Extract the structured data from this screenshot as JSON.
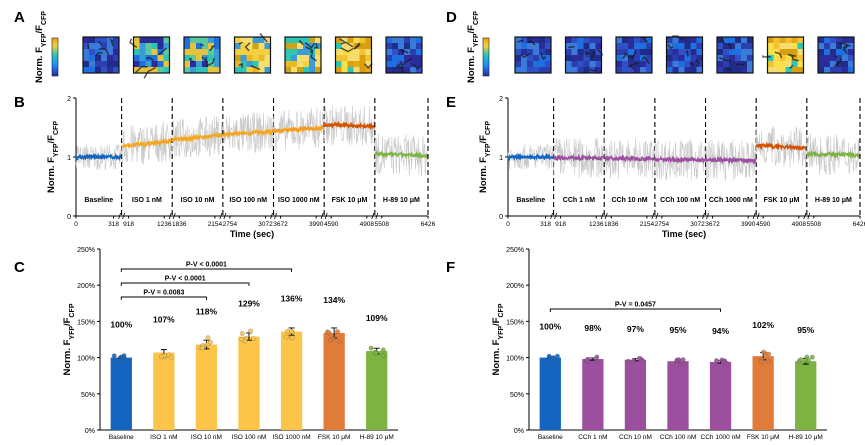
{
  "colors": {
    "baseline": "#1565c0",
    "iso": "#f5a623",
    "iso_bar": "#fcc54a",
    "iso_trace_late": "#f59a1d",
    "fsk": "#e07b39",
    "fsk_trace": "#d35400",
    "h89": "#7cb342",
    "cch": "#9b4f9e",
    "raw": "#c8c8c8"
  },
  "panels": {
    "A": "A",
    "B": "B",
    "C": "C",
    "D": "D",
    "E": "E",
    "F": "F"
  },
  "image_row_label": "Norm. F",
  "time_axis_label": "Time (sec)",
  "y_axis_trace": "Norm. F",
  "y_axis_bar": "Norm. F",
  "ratio_sub_yfp": "YFP",
  "ratio_sub_cfp": "CFP",
  "ratio_slash": "/F",
  "chart_data": [
    {
      "id": "B",
      "type": "line",
      "title": "",
      "xlabel": "Time (sec)",
      "ylabel": "Norm. F_YFP/F_CFP",
      "ylim": [
        0,
        2
      ],
      "yticks": [
        "0",
        "1",
        "2"
      ],
      "xticks": [
        "0",
        "318",
        "918",
        "1236",
        "1836",
        "2154",
        "2754",
        "3072",
        "3672",
        "3990",
        "4590",
        "4908",
        "5508",
        "6426"
      ],
      "segments": [
        {
          "label": "Baseline",
          "t_start": 0,
          "t_end": 318,
          "mean_start": 1.0,
          "mean_end": 1.0
        },
        {
          "label": "ISO 1 nM",
          "t_start": 918,
          "t_end": 1236,
          "mean_start": 1.18,
          "mean_end": 1.27
        },
        {
          "label": "ISO 10 nM",
          "t_start": 1836,
          "t_end": 2154,
          "mean_start": 1.29,
          "mean_end": 1.37
        },
        {
          "label": "ISO 100 nM",
          "t_start": 2754,
          "t_end": 3072,
          "mean_start": 1.38,
          "mean_end": 1.43
        },
        {
          "label": "ISO 1000 nM",
          "t_start": 3672,
          "t_end": 3990,
          "mean_start": 1.44,
          "mean_end": 1.5
        },
        {
          "label": "FSK 10 μM",
          "t_start": 4590,
          "t_end": 4908,
          "mean_start": 1.55,
          "mean_end": 1.52
        },
        {
          "label": "H-89 10 μM",
          "t_start": 5508,
          "t_end": 6426,
          "mean_start": 1.05,
          "mean_end": 1.02
        }
      ]
    },
    {
      "id": "C",
      "type": "bar",
      "ylabel": "Norm. F_YFP/F_CFP",
      "ylim": [
        0,
        250
      ],
      "yticks": [
        "0%",
        "50%",
        "100%",
        "150%",
        "200%",
        "250%"
      ],
      "categories": [
        "Baseline",
        "ISO 1 nM",
        "ISO 10 nM",
        "ISO 100 nM",
        "ISO 1000 nM",
        "FSK 10 μM",
        "H-89 10 μM"
      ],
      "values": [
        100,
        107,
        118,
        129,
        136,
        134,
        109
      ],
      "errors": [
        1,
        4,
        6,
        5,
        5,
        7,
        4
      ],
      "data_labels": [
        "100%",
        "107%",
        "118%",
        "129%",
        "136%",
        "134%",
        "109%"
      ],
      "significance": [
        {
          "label": "P-V < 0.0001",
          "from": 0,
          "to": 4
        },
        {
          "label": "P-V < 0.0001",
          "from": 0,
          "to": 3
        },
        {
          "label": "P-V = 0.0083",
          "from": 0,
          "to": 2
        }
      ]
    },
    {
      "id": "E",
      "type": "line",
      "title": "",
      "xlabel": "Time (sec)",
      "ylabel": "Norm. F_YFP/F_CFP",
      "ylim": [
        0,
        2
      ],
      "yticks": [
        "0",
        "1",
        "2"
      ],
      "xticks": [
        "0",
        "318",
        "918",
        "1236",
        "1836",
        "2154",
        "2754",
        "3072",
        "3672",
        "3990",
        "4590",
        "4908",
        "5508",
        "6426"
      ],
      "segments": [
        {
          "label": "Baseline",
          "t_start": 0,
          "t_end": 318,
          "mean_start": 1.0,
          "mean_end": 1.0
        },
        {
          "label": "CCh 1 nM",
          "t_start": 918,
          "t_end": 1236,
          "mean_start": 0.99,
          "mean_end": 0.98
        },
        {
          "label": "CCh 10 nM",
          "t_start": 1836,
          "t_end": 2154,
          "mean_start": 0.98,
          "mean_end": 0.97
        },
        {
          "label": "CCh 100 nM",
          "t_start": 2754,
          "t_end": 3072,
          "mean_start": 0.96,
          "mean_end": 0.95
        },
        {
          "label": "CCh 1000 nM",
          "t_start": 3672,
          "t_end": 3990,
          "mean_start": 0.95,
          "mean_end": 0.94
        },
        {
          "label": "FSK 10 μM",
          "t_start": 4590,
          "t_end": 4908,
          "mean_start": 1.2,
          "mean_end": 1.15
        },
        {
          "label": "H-89 10 μM",
          "t_start": 5508,
          "t_end": 6426,
          "mean_start": 1.05,
          "mean_end": 1.03
        }
      ]
    },
    {
      "id": "F",
      "type": "bar",
      "ylabel": "Norm. F_YFP/F_CFP",
      "ylim": [
        0,
        250
      ],
      "yticks": [
        "0%",
        "50%",
        "100%",
        "150%",
        "200%",
        "250%"
      ],
      "categories": [
        "Baseline",
        "CCh 1 nM",
        "CCh 10 nM",
        "CCh 100 nM",
        "CCh 1000 nM",
        "FSK 10 μM",
        "H-89 10 μM"
      ],
      "values": [
        100,
        98,
        97,
        95,
        94,
        102,
        95
      ],
      "errors": [
        1,
        1.5,
        1.5,
        1.5,
        1.5,
        5,
        4
      ],
      "data_labels": [
        "100%",
        "98%",
        "97%",
        "95%",
        "94%",
        "102%",
        "95%"
      ],
      "significance": [
        {
          "label": "P-V = 0.0457",
          "from": 0,
          "to": 4
        }
      ]
    }
  ],
  "heatmaps": {
    "A": [
      "cool",
      "mixed",
      "mixed",
      "warm",
      "warm",
      "hot",
      "cool"
    ],
    "D": [
      "cool",
      "cool",
      "cool",
      "cool",
      "cool",
      "hot",
      "cool"
    ]
  }
}
